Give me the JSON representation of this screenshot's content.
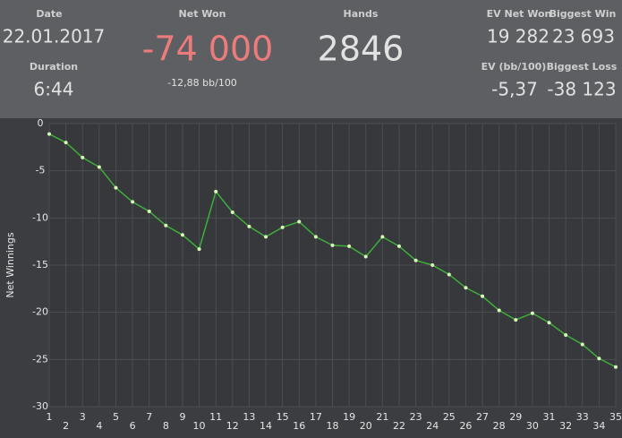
{
  "stats": {
    "date": {
      "label": "Date",
      "value": "22.01.2017"
    },
    "duration": {
      "label": "Duration",
      "value": "6:44"
    },
    "net_won": {
      "label": "Net Won",
      "value": "-74 000",
      "sub": "-12,88 bb/100"
    },
    "hands": {
      "label": "Hands",
      "value": "2846"
    },
    "ev_net_won": {
      "label": "EV Net Won",
      "value": "19 282"
    },
    "biggest_win": {
      "label": "Biggest Win",
      "value": "23 693"
    },
    "ev_bb": {
      "label": "EV (bb/100)",
      "value": "-5,37"
    },
    "biggest_loss": {
      "label": "Biggest Loss",
      "value": "-38 123"
    }
  },
  "chart_data": {
    "type": "line",
    "y_label": "Net Winnings",
    "x": [
      1,
      2,
      3,
      4,
      5,
      6,
      7,
      8,
      9,
      10,
      11,
      12,
      13,
      14,
      15,
      16,
      17,
      18,
      19,
      20,
      21,
      22,
      23,
      24,
      25,
      26,
      27,
      28,
      29,
      30,
      31,
      32,
      33,
      34,
      35
    ],
    "values": [
      -1.1,
      -2.0,
      -3.6,
      -4.6,
      -6.8,
      -8.3,
      -9.3,
      -10.8,
      -11.8,
      -13.3,
      -7.2,
      -9.4,
      -10.9,
      -12.0,
      -11.0,
      -10.4,
      -12.0,
      -12.9,
      -13.0,
      -14.1,
      -12.0,
      -13.0,
      -14.5,
      -15.0,
      -16.0,
      -17.4,
      -18.3,
      -19.8,
      -20.8,
      -20.1,
      -21.1,
      -22.4,
      -23.4,
      -24.9,
      -25.8
    ],
    "color": "#3fae3a",
    "marker_color": "#d9f7b8",
    "xlim": [
      1,
      35
    ],
    "xticks": [
      1,
      2,
      3,
      4,
      5,
      6,
      7,
      8,
      9,
      10,
      11,
      12,
      13,
      14,
      15,
      16,
      17,
      18,
      19,
      20,
      21,
      22,
      23,
      24,
      25,
      26,
      27,
      28,
      29,
      30,
      31,
      32,
      33,
      34,
      35
    ],
    "ylim": [
      -30,
      0
    ],
    "yticks": [
      0,
      -5,
      -10,
      -15,
      -20,
      -25,
      -30
    ],
    "grid": true
  }
}
